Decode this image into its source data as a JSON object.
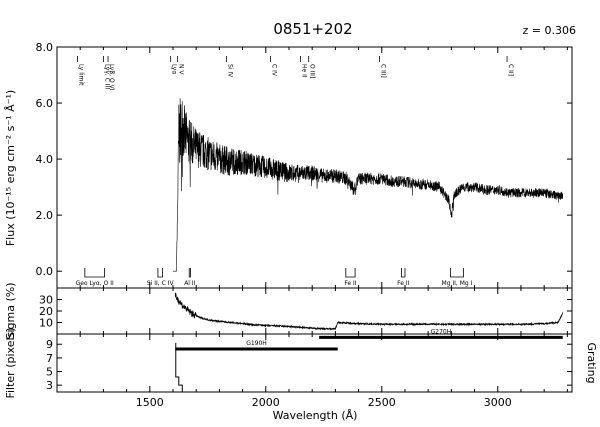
{
  "chart_data": {
    "type": "line",
    "title": "0851+202",
    "redshift_label": "z = 0.306",
    "xlabel": "Wavelength (Å)",
    "xlim": [
      1100,
      3320
    ],
    "xticks": [
      1500,
      2000,
      2500,
      3000
    ],
    "grid": false,
    "panels": [
      {
        "name": "flux",
        "ylabel": "Flux (10⁻¹⁵ erg cm⁻² s⁻¹ Å⁻¹)",
        "ylim": [
          -0.6,
          8.0
        ],
        "yticks": [
          {
            "v": 0.0,
            "label": "0.0"
          },
          {
            "v": 2.0,
            "label": "2.0"
          },
          {
            "v": 4.0,
            "label": "4.0"
          },
          {
            "v": 6.0,
            "label": "6.0"
          },
          {
            "v": 8.0,
            "label": "8.0"
          }
        ],
        "series": [
          {
            "x": [
              1600,
              1615,
              1625,
              1640,
              1660,
              1700,
              1750,
              1800,
              1850,
              1900,
              1950,
              2000,
              2050,
              2100,
              2150,
              2200,
              2250,
              2300,
              2350,
              2380,
              2400,
              2450,
              2500,
              2550,
              2600,
              2650,
              2700,
              2750,
              2790,
              2800,
              2810,
              2850,
              2900,
              2950,
              3000,
              3050,
              3100,
              3150,
              3200,
              3250,
              3280
            ],
            "y": [
              0.0,
              0.0,
              4.8,
              5.2,
              4.7,
              4.4,
              4.2,
              4.0,
              3.9,
              3.9,
              3.8,
              3.7,
              3.6,
              3.5,
              3.5,
              3.5,
              3.4,
              3.4,
              3.3,
              2.9,
              3.3,
              3.3,
              3.3,
              3.2,
              3.2,
              3.1,
              3.1,
              3.0,
              2.5,
              1.9,
              2.7,
              3.0,
              3.0,
              2.9,
              2.9,
              2.8,
              2.8,
              2.8,
              2.8,
              2.7,
              2.7
            ],
            "noise": [
              0,
              0,
              1.3,
              1.1,
              0.9,
              0.7,
              0.6,
              0.55,
              0.5,
              0.45,
              0.42,
              0.4,
              0.38,
              0.34,
              0.3,
              0.28,
              0.26,
              0.25,
              0.24,
              0.24,
              0.22,
              0.22,
              0.21,
              0.2,
              0.2,
              0.2,
              0.19,
              0.19,
              0.19,
              0.19,
              0.19,
              0.18,
              0.18,
              0.18,
              0.17,
              0.17,
              0.17,
              0.17,
              0.16,
              0.16,
              0.16
            ]
          }
        ],
        "emission_labels": [
          {
            "x": 1188,
            "label": "Ly limit"
          },
          {
            "x": 1300,
            "label": "Lyγ, C III"
          },
          {
            "x": 1320,
            "label": "Lyβ, O VI"
          },
          {
            "x": 1590,
            "label": "Lyα"
          },
          {
            "x": 1620,
            "label": "N V"
          },
          {
            "x": 1830,
            "label": "Si IV"
          },
          {
            "x": 2020,
            "label": "C IV"
          },
          {
            "x": 2150,
            "label": "He II"
          },
          {
            "x": 2185,
            "label": "O III]"
          },
          {
            "x": 2490,
            "label": "C III]"
          },
          {
            "x": 3040,
            "label": "C II]"
          }
        ],
        "absorption_groups": [
          {
            "x1": 1220,
            "x2": 1305,
            "label": "Geo Lyα, O II"
          },
          {
            "x1": 1535,
            "x2": 1555,
            "label": "Si II, C IV"
          },
          {
            "x1": 1670,
            "x2": 1675,
            "label": "Al II"
          },
          {
            "x1": 2345,
            "x2": 2385,
            "label": "Fe II"
          },
          {
            "x1": 2585,
            "x2": 2600,
            "label": "Fe II"
          },
          {
            "x1": 2796,
            "x2": 2852,
            "label": "Mg II, Mg I"
          }
        ]
      },
      {
        "name": "sigma",
        "ylabel": "Sigma (%)",
        "ylim": [
          0,
          40
        ],
        "yticks": [
          {
            "v": 10,
            "label": "10"
          },
          {
            "v": 20,
            "label": "20"
          },
          {
            "v": 30,
            "label": "30"
          }
        ],
        "series": [
          {
            "x": [
              1610,
              1640,
              1680,
              1720,
              1760,
              1800,
              1850,
              1900,
              1950,
              2000,
              2100,
              2200,
              2260,
              2300,
              2310,
              2400,
              2500,
              2600,
              2700,
              2800,
              2900,
              3000,
              3100,
              3200,
              3260,
              3280
            ],
            "y": [
              33,
              25,
              18,
              14,
              12,
              11,
              10,
              9,
              8,
              7.5,
              6.5,
              5,
              4.5,
              4.5,
              10,
              9,
              8.5,
              8.5,
              8.5,
              8.5,
              8.5,
              8.5,
              8.5,
              9,
              10,
              18
            ]
          }
        ]
      },
      {
        "name": "filter",
        "ylabel": "Filter (pixels)",
        "right_label": "Grating",
        "ylim": [
          2,
          10.5
        ],
        "yticks": [
          {
            "v": 3,
            "label": "3"
          },
          {
            "v": 5,
            "label": "5"
          },
          {
            "v": 7,
            "label": "7"
          },
          {
            "v": 9,
            "label": "9"
          }
        ],
        "gratings": [
          {
            "name": "G190H",
            "x1": 1610,
            "x2": 2310,
            "v": 8.3
          },
          {
            "name": "G270H",
            "x1": 2230,
            "x2": 3280,
            "v": 10.0
          }
        ]
      }
    ]
  }
}
